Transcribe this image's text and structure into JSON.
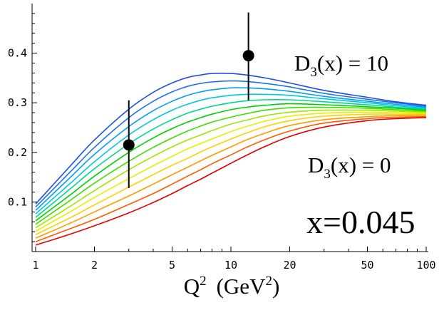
{
  "chart_data": {
    "type": "line",
    "x_scale": "log",
    "xlim": [
      1,
      100
    ],
    "ylim": [
      0.0,
      0.5
    ],
    "x_ticks": [
      1,
      2,
      5,
      10,
      20,
      50,
      100
    ],
    "x_tick_labels": [
      "1",
      "2",
      "5",
      "10",
      "20",
      "50",
      "100"
    ],
    "y_ticks": [
      0.1,
      0.2,
      0.3,
      0.4
    ],
    "y_tick_labels": [
      "0.1",
      "0.2",
      "0.3",
      "0.4"
    ],
    "xlabel": {
      "base": "Q",
      "sup": "2",
      "unit_open": "(GeV",
      "unit_sup": "2",
      "unit_close": ")"
    },
    "ylabel": "",
    "grid": false,
    "annotations": {
      "top": {
        "base": "D",
        "sub": "3",
        "rest": "(x) = 10"
      },
      "bottom": {
        "base": "D",
        "sub": "3",
        "rest": "(x) = 0"
      },
      "xvalue": "x=0.045"
    },
    "x": [
      1,
      1.5,
      2,
      3,
      4,
      5,
      6,
      7,
      8,
      10,
      12,
      15,
      20,
      30,
      50,
      70,
      100
    ],
    "series": [
      {
        "color": "#e00000",
        "values": [
          0.013,
          0.035,
          0.052,
          0.078,
          0.099,
          0.117,
          0.133,
          0.146,
          0.158,
          0.178,
          0.194,
          0.212,
          0.232,
          0.251,
          0.264,
          0.268,
          0.27
        ]
      },
      {
        "color": "#ff5a00",
        "values": [
          0.02,
          0.046,
          0.065,
          0.095,
          0.117,
          0.136,
          0.152,
          0.165,
          0.177,
          0.195,
          0.21,
          0.226,
          0.243,
          0.259,
          0.268,
          0.271,
          0.272
        ]
      },
      {
        "color": "#ff9a00",
        "values": [
          0.027,
          0.057,
          0.08,
          0.112,
          0.136,
          0.155,
          0.17,
          0.183,
          0.194,
          0.211,
          0.225,
          0.239,
          0.254,
          0.266,
          0.272,
          0.274,
          0.275
        ]
      },
      {
        "color": "#ffd000",
        "values": [
          0.034,
          0.068,
          0.094,
          0.13,
          0.155,
          0.174,
          0.188,
          0.201,
          0.211,
          0.227,
          0.239,
          0.252,
          0.264,
          0.273,
          0.277,
          0.277,
          0.277
        ]
      },
      {
        "color": "#e6f000",
        "values": [
          0.041,
          0.08,
          0.109,
          0.147,
          0.173,
          0.192,
          0.207,
          0.218,
          0.227,
          0.242,
          0.252,
          0.263,
          0.273,
          0.279,
          0.281,
          0.28,
          0.279
        ]
      },
      {
        "color": "#a0e600",
        "values": [
          0.048,
          0.091,
          0.123,
          0.165,
          0.192,
          0.211,
          0.225,
          0.235,
          0.244,
          0.257,
          0.265,
          0.274,
          0.281,
          0.285,
          0.285,
          0.283,
          0.281
        ]
      },
      {
        "color": "#40dd00",
        "values": [
          0.055,
          0.103,
          0.138,
          0.182,
          0.21,
          0.229,
          0.243,
          0.253,
          0.261,
          0.271,
          0.278,
          0.285,
          0.29,
          0.291,
          0.289,
          0.286,
          0.283
        ]
      },
      {
        "color": "#00d000",
        "values": [
          0.062,
          0.114,
          0.152,
          0.2,
          0.229,
          0.248,
          0.261,
          0.27,
          0.277,
          0.286,
          0.291,
          0.295,
          0.298,
          0.296,
          0.292,
          0.289,
          0.285
        ]
      },
      {
        "color": "#00d890",
        "values": [
          0.069,
          0.126,
          0.167,
          0.217,
          0.247,
          0.266,
          0.279,
          0.287,
          0.293,
          0.3,
          0.304,
          0.306,
          0.306,
          0.302,
          0.296,
          0.291,
          0.287
        ]
      },
      {
        "color": "#00c8e0",
        "values": [
          0.076,
          0.137,
          0.181,
          0.235,
          0.266,
          0.285,
          0.297,
          0.305,
          0.31,
          0.315,
          0.317,
          0.317,
          0.315,
          0.308,
          0.3,
          0.294,
          0.289
        ]
      },
      {
        "color": "#00a0f0",
        "values": [
          0.083,
          0.149,
          0.196,
          0.252,
          0.284,
          0.303,
          0.315,
          0.322,
          0.326,
          0.33,
          0.33,
          0.328,
          0.323,
          0.313,
          0.303,
          0.297,
          0.291
        ]
      },
      {
        "color": "#2070e8",
        "values": [
          0.09,
          0.16,
          0.21,
          0.27,
          0.303,
          0.322,
          0.333,
          0.339,
          0.342,
          0.344,
          0.343,
          0.339,
          0.332,
          0.319,
          0.307,
          0.3,
          0.293
        ]
      },
      {
        "color": "#2050e0",
        "values": [
          0.096,
          0.172,
          0.225,
          0.287,
          0.321,
          0.34,
          0.351,
          0.356,
          0.359,
          0.359,
          0.356,
          0.35,
          0.34,
          0.325,
          0.311,
          0.302,
          0.295
        ]
      }
    ],
    "data_points": [
      {
        "x": 3,
        "y": 0.215,
        "y_low": 0.128,
        "y_high": 0.305
      },
      {
        "x": 12.3,
        "y": 0.395,
        "y_low": 0.305,
        "y_high": 0.482
      }
    ]
  }
}
